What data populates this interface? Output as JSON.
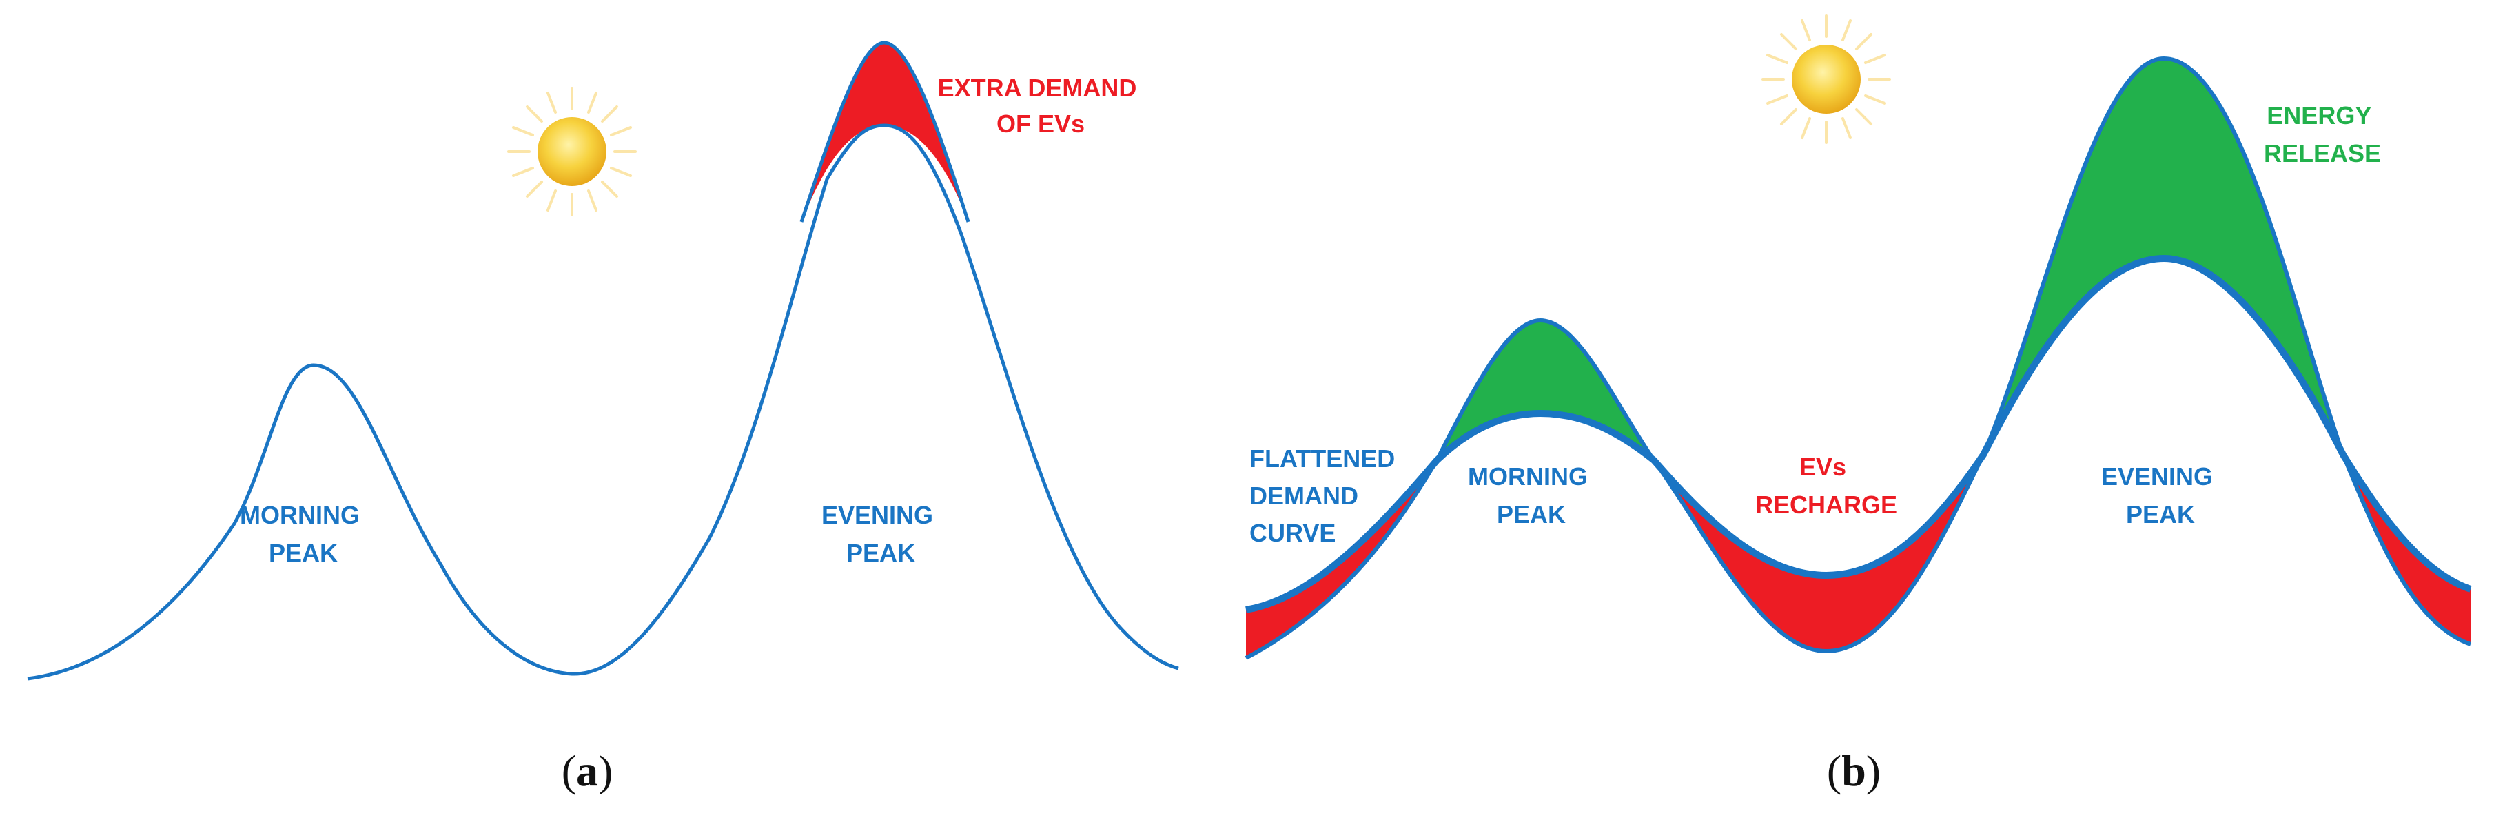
{
  "colors": {
    "curve": "#1a75c4",
    "extra": "#ed1c24",
    "release": "#22b14c",
    "sun_core": "#f6c83a",
    "sun_rays": "#fbe9a0",
    "caption": "#111111"
  },
  "icons": [
    "sun-icon"
  ],
  "panel_a": {
    "caption_open": "(",
    "caption_letter": "a",
    "caption_close": ")",
    "morning": [
      "MORNING",
      "PEAK"
    ],
    "evening": [
      "EVENING",
      "PEAK"
    ],
    "extra": [
      "EXTRA DEMAND",
      "OF EVs"
    ]
  },
  "panel_b": {
    "caption_open": "(",
    "caption_letter": "b",
    "caption_close": ")",
    "flattened": [
      "FLATTENED",
      "DEMAND",
      "CURVE"
    ],
    "morning": [
      "MORNING",
      "PEAK"
    ],
    "evening": [
      "EVENING",
      "PEAK"
    ],
    "recharge": [
      "EVs",
      "RECHARGE"
    ],
    "release": [
      "ENERGY",
      "RELEASE"
    ]
  }
}
